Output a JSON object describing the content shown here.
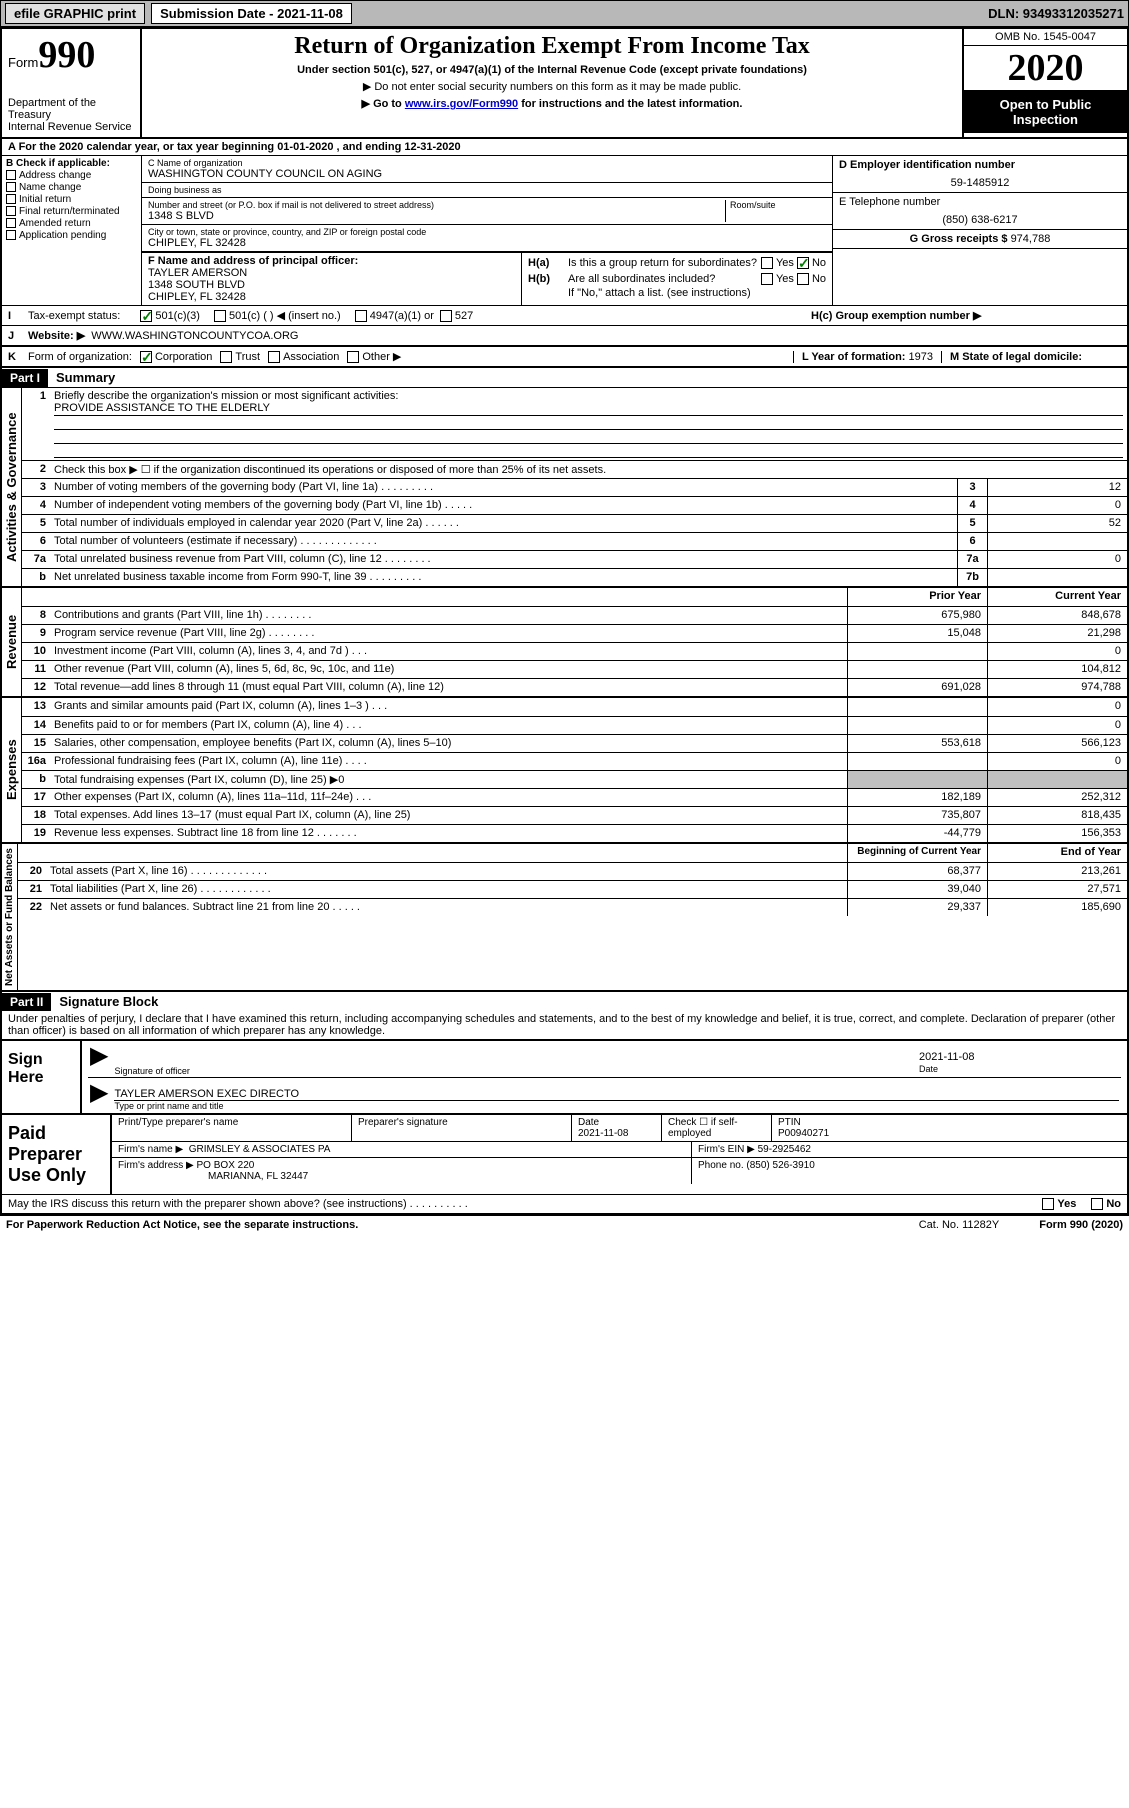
{
  "topbar": {
    "efile": "efile GRAPHIC print",
    "sub_lbl": "Submission Date - 2021-11-08",
    "dln": "DLN: 93493312035271"
  },
  "header": {
    "form_word": "Form",
    "form_num": "990",
    "dept": "Department of the Treasury",
    "irs": "Internal Revenue Service",
    "title": "Return of Organization Exempt From Income Tax",
    "sub1": "Under section 501(c), 527, or 4947(a)(1) of the Internal Revenue Code (except private foundations)",
    "sub2": "▶ Do not enter social security numbers on this form as it may be made public.",
    "sub3_pre": "▶ Go to ",
    "sub3_link": "www.irs.gov/Form990",
    "sub3_post": " for instructions and the latest information.",
    "omb": "OMB No. 1545-0047",
    "year": "2020",
    "open": "Open to Public Inspection"
  },
  "rowA": {
    "text": "A For the 2020 calendar year, or tax year beginning 01-01-2020    , and ending 12-31-2020"
  },
  "colB": {
    "hdr": "B Check if applicable:",
    "items": [
      "Address change",
      "Name change",
      "Initial return",
      "Final return/terminated",
      "Amended return",
      "Application pending"
    ]
  },
  "colC": {
    "name_lbl": "C Name of organization",
    "name": "WASHINGTON COUNTY COUNCIL ON AGING",
    "dba_lbl": "Doing business as",
    "dba": "",
    "street_lbl": "Number and street (or P.O. box if mail is not delivered to street address)",
    "room_lbl": "Room/suite",
    "street": "1348 S BLVD",
    "city_lbl": "City or town, state or province, country, and ZIP or foreign postal code",
    "city": "CHIPLEY, FL  32428",
    "f_lbl": "F  Name and address of principal officer:",
    "f_name": "TAYLER AMERSON",
    "f_addr1": "1348 SOUTH BLVD",
    "f_addr2": "CHIPLEY, FL  32428"
  },
  "colD": {
    "ein_lbl": "D Employer identification number",
    "ein": "59-1485912",
    "tel_lbl": "E Telephone number",
    "tel": "(850) 638-6217",
    "gross_lbl": "G Gross receipts $ ",
    "gross": "974,788"
  },
  "colH": {
    "ha": "H(a)  Is this a group return for subordinates?",
    "ha_yes": "Yes",
    "ha_no": "No",
    "hb": "H(b)  Are all subordinates included?",
    "hb_note": "If \"No,\" attach a list. (see instructions)",
    "hc": "H(c)  Group exemption number ▶"
  },
  "rowI": {
    "lbl": "I",
    "txt": "Tax-exempt status:",
    "o1": "501(c)(3)",
    "o2": "501(c) (   ) ◀ (insert no.)",
    "o3": "4947(a)(1) or",
    "o4": "527"
  },
  "rowJ": {
    "lbl": "J",
    "txt": "Website: ▶",
    "val": "WWW.WASHINGTONCOUNTYCOA.ORG"
  },
  "rowK": {
    "lbl": "K",
    "txt": "Form of organization:",
    "o1": "Corporation",
    "o2": "Trust",
    "o3": "Association",
    "o4": "Other ▶",
    "l_lbl": "L Year of formation: ",
    "l_val": "1973",
    "m_lbl": "M State of legal domicile:",
    "m_val": ""
  },
  "part1": {
    "num": "Part I",
    "title": "Summary"
  },
  "p1": {
    "vlabel": "Activities & Governance",
    "q1": "Briefly describe the organization's mission or most significant activities:",
    "q1a": "PROVIDE ASSISTANCE TO THE ELDERLY",
    "q2": "Check this box ▶ ☐  if the organization discontinued its operations or disposed of more than 25% of its net assets.",
    "q3": "Number of voting members of the governing body (Part VI, line 1a)   .    .    .    .    .    .    .    .    .",
    "n3": "3",
    "v3": "12",
    "q4": "Number of independent voting members of the governing body (Part VI, line 1b)   .    .    .    .    .",
    "n4": "4",
    "v4": "0",
    "q5": "Total number of individuals employed in calendar year 2020 (Part V, line 2a)   .    .    .    .    .    .",
    "n5": "5",
    "v5": "52",
    "q6": "Total number of volunteers (estimate if necessary)   .    .    .    .    .    .    .    .    .    .    .    .    .",
    "n6": "6",
    "v6": "",
    "q7a": "Total unrelated business revenue from Part VIII, column (C), line 12   .    .    .    .    .    .    .    .",
    "n7a": "7a",
    "v7a": "0",
    "q7b": "Net unrelated business taxable income from Form 990-T, line 39   .    .    .    .    .    .    .    .    .",
    "n7b": "7b",
    "v7b": ""
  },
  "rev": {
    "vlabel": "Revenue",
    "prior": "Prior Year",
    "curr": "Current Year",
    "r": [
      {
        "n": "8",
        "t": "Contributions and grants (Part VIII, line 1h)   .    .    .    .    .    .    .    .",
        "p": "675,980",
        "c": "848,678"
      },
      {
        "n": "9",
        "t": "Program service revenue (Part VIII, line 2g)   .    .    .    .    .    .    .    .",
        "p": "15,048",
        "c": "21,298"
      },
      {
        "n": "10",
        "t": "Investment income (Part VIII, column (A), lines 3, 4, and 7d )   .    .    .",
        "p": "",
        "c": "0"
      },
      {
        "n": "11",
        "t": "Other revenue (Part VIII, column (A), lines 5, 6d, 8c, 9c, 10c, and 11e)",
        "p": "",
        "c": "104,812"
      },
      {
        "n": "12",
        "t": "Total revenue—add lines 8 through 11 (must equal Part VIII, column (A), line 12)",
        "p": "691,028",
        "c": "974,788"
      }
    ]
  },
  "exp": {
    "vlabel": "Expenses",
    "r": [
      {
        "n": "13",
        "t": "Grants and similar amounts paid (Part IX, column (A), lines 1–3 )   .    .    .",
        "p": "",
        "c": "0"
      },
      {
        "n": "14",
        "t": "Benefits paid to or for members (Part IX, column (A), line 4)   .    .    .",
        "p": "",
        "c": "0"
      },
      {
        "n": "15",
        "t": "Salaries, other compensation, employee benefits (Part IX, column (A), lines 5–10)",
        "p": "553,618",
        "c": "566,123"
      },
      {
        "n": "16a",
        "t": "Professional fundraising fees (Part IX, column (A), line 11e)   .    .    .    .",
        "p": "",
        "c": "0"
      },
      {
        "n": "b",
        "t": "Total fundraising expenses (Part IX, column (D), line 25) ▶0",
        "p": "GREY",
        "c": "GREY"
      },
      {
        "n": "17",
        "t": "Other expenses (Part IX, column (A), lines 11a–11d, 11f–24e)   .    .    .",
        "p": "182,189",
        "c": "252,312"
      },
      {
        "n": "18",
        "t": "Total expenses. Add lines 13–17 (must equal Part IX, column (A), line 25)",
        "p": "735,807",
        "c": "818,435"
      },
      {
        "n": "19",
        "t": "Revenue less expenses. Subtract line 18 from line 12   .    .    .    .    .    .    .",
        "p": "-44,779",
        "c": "156,353"
      }
    ]
  },
  "net": {
    "vlabel": "Net Assets or Fund Balances",
    "beg": "Beginning of Current Year",
    "end": "End of Year",
    "r": [
      {
        "n": "20",
        "t": "Total assets (Part X, line 16)   .    .    .    .    .    .    .    .    .    .    .    .    .",
        "p": "68,377",
        "c": "213,261"
      },
      {
        "n": "21",
        "t": "Total liabilities (Part X, line 26)   .    .    .    .    .    .    .    .    .    .    .    .",
        "p": "39,040",
        "c": "27,571"
      },
      {
        "n": "22",
        "t": "Net assets or fund balances. Subtract line 21 from line 20   .    .    .    .    .",
        "p": "29,337",
        "c": "185,690"
      }
    ]
  },
  "part2": {
    "num": "Part II",
    "title": "Signature Block",
    "decl": "Under penalties of perjury, I declare that I have examined this return, including accompanying schedules and statements, and to the best of my knowledge and belief, it is true, correct, and complete. Declaration of preparer (other than officer) is based on all information of which preparer has any knowledge."
  },
  "sign": {
    "here": "Sign Here",
    "sig_lbl": "Signature of officer",
    "date_lbl": "Date",
    "date": "2021-11-08",
    "name": "TAYLER AMERSON  EXEC DIRECTO",
    "name_lbl": "Type or print name and title"
  },
  "paid": {
    "lbl": "Paid Preparer Use Only",
    "h1": "Print/Type preparer's name",
    "h2": "Preparer's signature",
    "h3": "Date",
    "h3v": "2021-11-08",
    "h4": "Check ☐ if self-employed",
    "h5": "PTIN",
    "h5v": "P00940271",
    "firm_lbl": "Firm's name    ▶",
    "firm": "GRIMSLEY & ASSOCIATES PA",
    "ein_lbl": "Firm's EIN ▶",
    "ein": "59-2925462",
    "addr_lbl": "Firm's address ▶",
    "addr1": "PO BOX 220",
    "addr2": "MARIANNA, FL  32447",
    "phone_lbl": "Phone no.",
    "phone": "(850) 526-3910"
  },
  "discuss": {
    "txt": "May the IRS discuss this return with the preparer shown above? (see instructions)   .    .    .    .    .    .    .    .    .    .",
    "yes": "Yes",
    "no": "No"
  },
  "footer": {
    "l": "For Paperwork Reduction Act Notice, see the separate instructions.",
    "c": "Cat. No. 11282Y",
    "r": "Form 990 (2020)"
  }
}
